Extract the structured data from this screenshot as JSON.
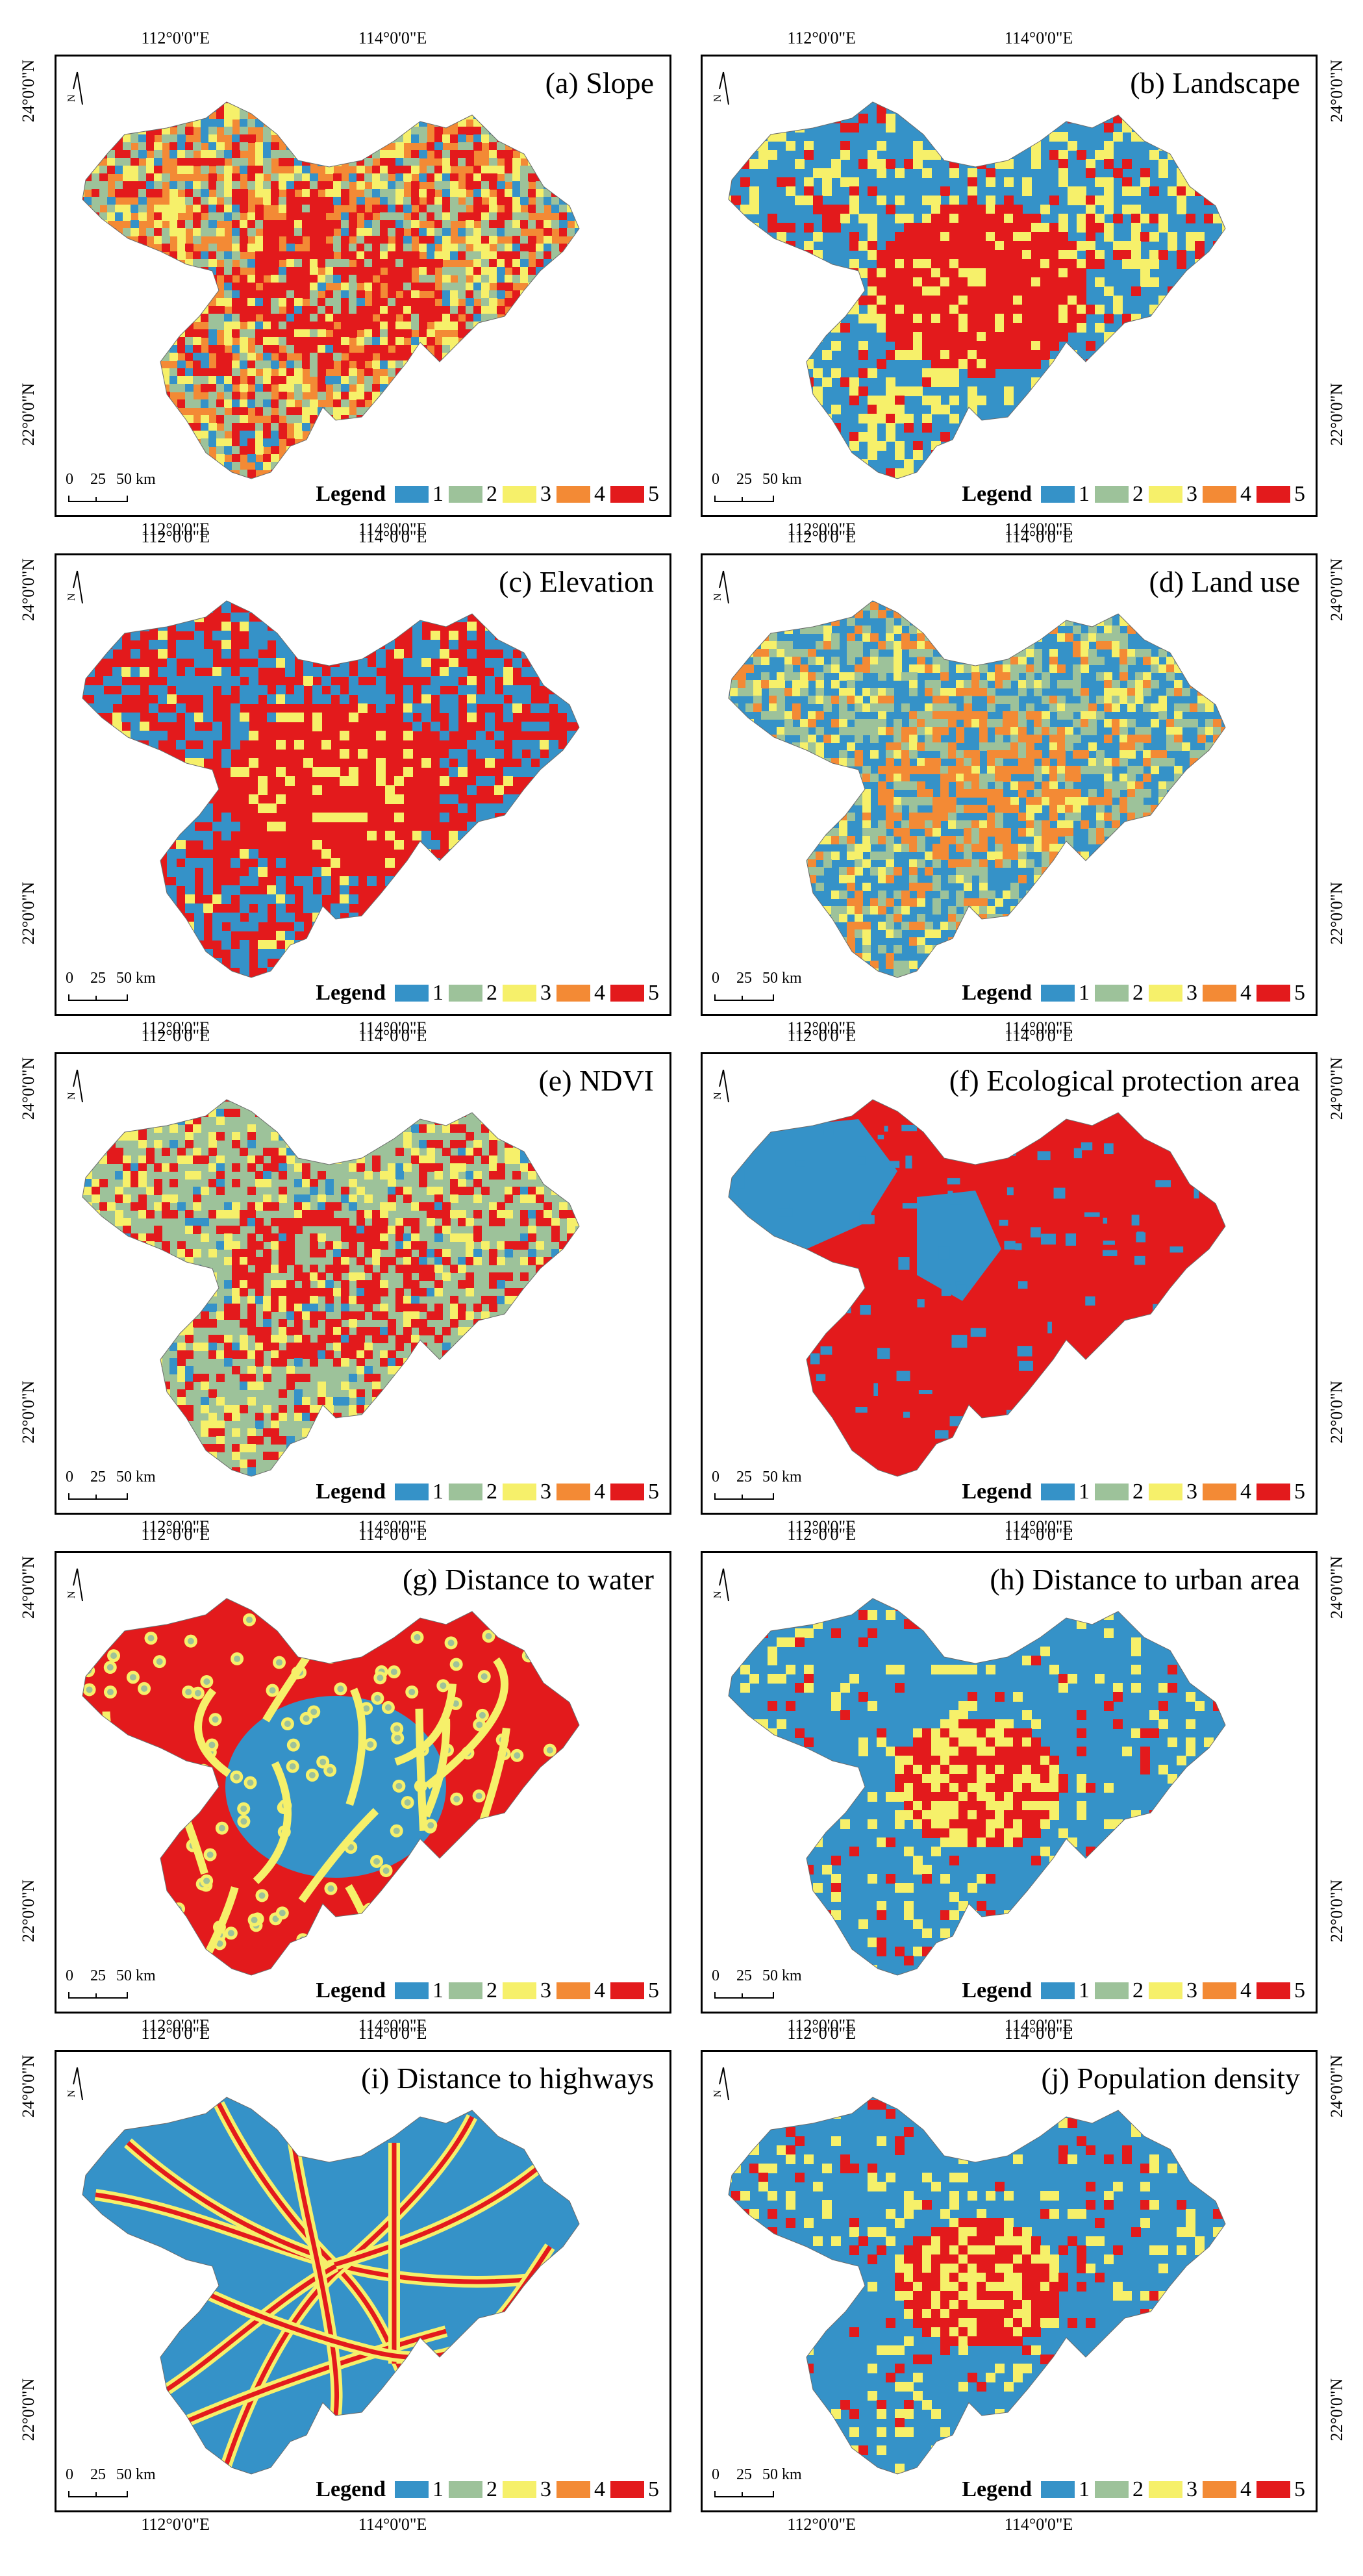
{
  "figure": {
    "lon_labels": [
      "112°0'0\"E",
      "114°0'0\"E"
    ],
    "lat_labels": [
      "24°0'0\"N",
      "22°0'0\"N"
    ],
    "scale_labels": [
      "0",
      "25",
      "50 km"
    ],
    "north_label": "N",
    "legend_title": "Legend",
    "legend_classes": [
      {
        "label": "1",
        "color": "#3592c8"
      },
      {
        "label": "2",
        "color": "#9dc29a"
      },
      {
        "label": "3",
        "color": "#f6f06a"
      },
      {
        "label": "4",
        "color": "#f38a35"
      },
      {
        "label": "5",
        "color": "#e31a1c"
      }
    ]
  },
  "panels": [
    {
      "title": "(a) Slope",
      "pattern": "mixed",
      "weights": [
        0.1,
        0.22,
        0.18,
        0.28,
        0.22
      ]
    },
    {
      "title": "(b) Landscape",
      "pattern": "core",
      "weights": [
        0.45,
        0.0,
        0.25,
        0.0,
        0.3
      ]
    },
    {
      "title": "(c) Elevation",
      "pattern": "core",
      "weights": [
        0.4,
        0.0,
        0.08,
        0.0,
        0.52
      ]
    },
    {
      "title": "(d) Land use",
      "pattern": "mixed",
      "weights": [
        0.45,
        0.25,
        0.15,
        0.15,
        0.0
      ]
    },
    {
      "title": "(e) NDVI",
      "pattern": "mixed",
      "weights": [
        0.06,
        0.56,
        0.18,
        0.0,
        0.2
      ]
    },
    {
      "title": "(f) Ecological protection area",
      "pattern": "eco",
      "weights": [
        0.35,
        0.0,
        0.0,
        0.0,
        0.65
      ]
    },
    {
      "title": "(g) Distance to water",
      "pattern": "water",
      "weights": [
        0.25,
        0.1,
        0.1,
        0.0,
        0.55
      ]
    },
    {
      "title": "(h) Distance to urban area",
      "pattern": "urban",
      "weights": [
        0.75,
        0.0,
        0.1,
        0.0,
        0.15
      ]
    },
    {
      "title": "(i) Distance to highways",
      "pattern": "roads",
      "weights": [
        0.7,
        0.0,
        0.1,
        0.0,
        0.2
      ]
    },
    {
      "title": "(j) Population density",
      "pattern": "urban",
      "weights": [
        0.6,
        0.0,
        0.15,
        0.0,
        0.25
      ]
    }
  ]
}
